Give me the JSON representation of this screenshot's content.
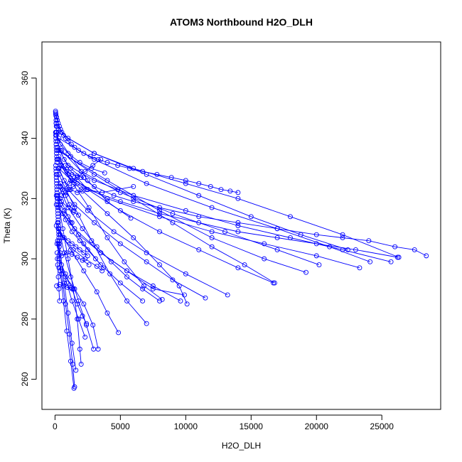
{
  "chart_data": {
    "type": "line",
    "title": "ATOM3 Northbound H2O_DLH",
    "xlabel": "H2O_DLH",
    "ylabel": "Theta (K)",
    "xlim": [
      -1000,
      29500
    ],
    "ylim": [
      250,
      372
    ],
    "xticks": [
      0,
      5000,
      10000,
      15000,
      20000,
      25000
    ],
    "yticks": [
      260,
      280,
      300,
      320,
      340,
      360
    ],
    "xtick_labels": [
      "0",
      "5000",
      "10000",
      "15000",
      "20000",
      "25000"
    ],
    "ytick_labels": [
      "260",
      "280",
      "300",
      "320",
      "340",
      "360"
    ],
    "grid": false,
    "legend": "none",
    "series_color": "#0000ff",
    "series": [
      {
        "x": [
          60,
          120,
          180,
          250,
          330,
          420,
          520,
          650,
          800,
          1000,
          1250,
          1500,
          1800,
          2200,
          2700,
          3300,
          4000,
          4800,
          5700,
          6700,
          7800,
          8900,
          10000,
          11000,
          11900,
          12700,
          13400,
          14000
        ],
        "y": [
          348,
          347,
          346,
          345,
          344,
          343,
          342,
          341,
          340,
          339,
          338,
          337,
          336,
          335,
          334,
          333,
          332,
          331,
          330,
          329,
          328,
          327,
          326,
          325,
          324,
          323,
          322.5,
          322
        ]
      },
      {
        "x": [
          28400,
          27500,
          26000,
          24000,
          22000,
          20000,
          17000,
          14000,
          11000,
          8000,
          6000,
          4500,
          3000,
          2000,
          1200,
          700,
          400,
          200,
          120,
          80
        ],
        "y": [
          301,
          303,
          304,
          306,
          307,
          308,
          310,
          312,
          314,
          317,
          319,
          321,
          324,
          327,
          330,
          333,
          336,
          339,
          342,
          345
        ]
      },
      {
        "x": [
          150,
          1000,
          3000,
          6000,
          10000,
          14000,
          18000,
          22000,
          26300
        ],
        "y": [
          344,
          340,
          335,
          330,
          325,
          320,
          314,
          308,
          300.5
        ]
      },
      {
        "x": [
          26200,
          23000,
          20000,
          17000,
          14000,
          11000,
          8000,
          5000,
          2500,
          1000,
          300
        ],
        "y": [
          300.5,
          303,
          305,
          307,
          309,
          312,
          315,
          319,
          323,
          328,
          334
        ]
      },
      {
        "x": [
          300,
          3000,
          7000,
          12000,
          17000,
          21000,
          24100
        ],
        "y": [
          340,
          333,
          325,
          317,
          310,
          304,
          299
        ]
      },
      {
        "x": [
          25700,
          22000,
          18000,
          14000,
          10000,
          6000,
          3000,
          1000,
          200
        ],
        "y": [
          299,
          303,
          307,
          311,
          316,
          321,
          326,
          331,
          337
        ]
      },
      {
        "x": [
          250,
          3000,
          7000,
          11000,
          15000,
          18800,
          22400
        ],
        "y": [
          342,
          335,
          328,
          321,
          314,
          308,
          303
        ]
      },
      {
        "x": [
          23300,
          20000,
          16000,
          12000,
          8000,
          4000,
          1500,
          300
        ],
        "y": [
          297,
          301,
          305,
          309,
          314,
          320,
          326,
          333
        ]
      },
      {
        "x": [
          200,
          4000,
          8000,
          12000,
          16000,
          19200
        ],
        "y": [
          336,
          326,
          316,
          307,
          300,
          295.5
        ]
      },
      {
        "x": [
          20200,
          17000,
          13000,
          9000,
          5000,
          2000,
          500
        ],
        "y": [
          298,
          303,
          309,
          315,
          322,
          329,
          336
        ]
      },
      {
        "x": [
          300,
          3000,
          6000,
          9000,
          12000,
          14500,
          16800
        ],
        "y": [
          336,
          328,
          320,
          312,
          304,
          298,
          292
        ]
      },
      {
        "x": [
          16700,
          14000,
          11000,
          8000,
          5000,
          2500,
          800
        ],
        "y": [
          292,
          297,
          303,
          309,
          316,
          323,
          331
        ]
      },
      {
        "x": [
          300,
          2000,
          4000,
          6000,
          8000,
          9500,
          10100
        ],
        "y": [
          330,
          323,
          315,
          307,
          298,
          291,
          285
        ]
      },
      {
        "x": [
          13200,
          10000,
          7000,
          4500,
          2500,
          1000,
          300
        ],
        "y": [
          288,
          295,
          302,
          309,
          316,
          323,
          330
        ]
      },
      {
        "x": [
          100,
          1500,
          3500,
          5500,
          7500,
          9900
        ],
        "y": [
          318,
          310,
          302,
          296,
          290,
          288
        ]
      },
      {
        "x": [
          11500,
          9000,
          7000,
          5000,
          3000,
          1500,
          400
        ],
        "y": [
          287,
          293,
          299,
          305,
          312,
          318,
          325
        ]
      },
      {
        "x": [
          300,
          1500,
          2800,
          4200,
          5500,
          7000
        ],
        "y": [
          328,
          317,
          306,
          295,
          286,
          278.5
        ]
      },
      {
        "x": [
          6700,
          5000,
          3500,
          2200,
          1200,
          400
        ],
        "y": [
          286,
          292,
          298,
          305,
          312,
          320
        ]
      },
      {
        "x": [
          250,
          1200,
          2200,
          3200,
          4000,
          4850
        ],
        "y": [
          310,
          303,
          296,
          289,
          282,
          275.5
        ]
      },
      {
        "x": [
          9600,
          7500,
          5500,
          3500,
          1800,
          600
        ],
        "y": [
          286,
          291,
          296,
          302,
          308,
          315
        ]
      },
      {
        "x": [
          300,
          800,
          1300,
          1700,
          2100,
          2400
        ],
        "y": [
          300,
          295,
          290,
          285,
          281,
          278.5
        ]
      },
      {
        "x": [
          2300,
          1800,
          1300,
          900,
          500,
          250
        ],
        "y": [
          274,
          280,
          286,
          292,
          298,
          305
        ]
      },
      {
        "x": [
          200,
          600,
          1000,
          1400,
          1700,
          1900,
          2000
        ],
        "y": [
          320,
          310,
          300,
          290,
          280,
          270,
          265
        ]
      },
      {
        "x": [
          1600,
          1300,
          1000,
          700,
          400,
          200
        ],
        "y": [
          263,
          272,
          282,
          292,
          302,
          312
        ]
      },
      {
        "x": [
          150,
          500,
          800,
          1100,
          1350,
          1500
        ],
        "y": [
          305,
          295,
          285,
          275,
          265,
          257.5
        ]
      },
      {
        "x": [
          1450,
          1200,
          900,
          650,
          400,
          200
        ],
        "y": [
          257,
          266,
          276,
          286,
          296,
          306
        ]
      },
      {
        "x": [
          300,
          800,
          1500,
          2200,
          2900,
          3300
        ],
        "y": [
          297,
          294,
          290,
          285,
          278,
          270
        ]
      },
      {
        "x": [
          2950,
          2400,
          1800,
          1200,
          700,
          300
        ],
        "y": [
          270,
          278,
          286,
          294,
          302,
          310
        ]
      },
      {
        "x": [
          100,
          600,
          1400,
          2300,
          3200,
          3600
        ],
        "y": [
          311,
          307,
          303,
          300,
          297.5,
          296
        ]
      },
      {
        "x": [
          3700,
          3100,
          2500,
          1900,
          1300,
          800,
          300
        ],
        "y": [
          297,
          300,
          303,
          306,
          309,
          313,
          317
        ]
      },
      {
        "x": [
          80,
          400,
          1000,
          1900,
          2800,
          3800
        ],
        "y": [
          342,
          338,
          335,
          332,
          330,
          328.5
        ]
      },
      {
        "x": [
          3500,
          2900,
          2300,
          1700,
          1100,
          600,
          200
        ],
        "y": [
          333,
          331,
          329,
          327,
          325,
          323,
          321
        ]
      },
      {
        "x": [
          200,
          1200,
          2600,
          4000,
          5300,
          6800,
          8200
        ],
        "y": [
          333,
          326,
          317,
          307,
          299,
          291,
          286.5
        ]
      },
      {
        "x": [
          8000,
          6700,
          5500,
          4300,
          3200,
          2100,
          1000,
          300
        ],
        "y": [
          286,
          290,
          294,
          299,
          304,
          310,
          317,
          324
        ]
      },
      {
        "x": [
          100,
          1200,
          2500,
          4000,
          5800
        ],
        "y": [
          341,
          334,
          326,
          319,
          313.5
        ]
      },
      {
        "x": [
          6000,
          4800,
          3600,
          2400,
          1300,
          400
        ],
        "y": [
          324,
          323,
          322,
          323,
          326,
          331
        ]
      },
      {
        "x": [
          250,
          700,
          1200,
          1700,
          2100
        ],
        "y": [
          330,
          326,
          323,
          322,
          322.5
        ]
      },
      {
        "x": [
          2200,
          1700,
          1300,
          900,
          500
        ],
        "y": [
          327,
          327.5,
          328,
          329,
          331
        ]
      },
      {
        "x": [
          100,
          500,
          1000,
          1400,
          1800
        ],
        "y": [
          321,
          319,
          317,
          315.5,
          314.5
        ]
      },
      {
        "x": [
          1700,
          1400,
          1100,
          800,
          500
        ],
        "y": [
          325,
          324,
          323,
          322,
          321
        ]
      },
      {
        "x": [
          150,
          450,
          800,
          1100,
          1400
        ],
        "y": [
          328,
          324,
          321,
          318,
          316
        ]
      },
      {
        "x": [
          1300,
          1000,
          700,
          400,
          200
        ],
        "y": [
          312,
          314,
          316,
          318,
          320
        ]
      },
      {
        "x": [
          180,
          500,
          900,
          1300,
          1700,
          2100,
          2600
        ],
        "y": [
          300,
          301,
          302,
          301.5,
          300.5,
          299.5,
          298
        ]
      },
      {
        "x": [
          2500,
          2200,
          1900,
          1600,
          1300,
          1000,
          700,
          400
        ],
        "y": [
          301,
          302,
          303,
          304,
          305,
          306,
          307,
          308
        ]
      },
      {
        "x": [
          120,
          350,
          650,
          950,
          1200
        ],
        "y": [
          291,
          291.5,
          291,
          290.5,
          290.5
        ]
      },
      {
        "x": [
          350,
          300,
          250,
          200,
          160
        ],
        "y": [
          286,
          290,
          294,
          298,
          302
        ]
      }
    ],
    "isolated_points": {
      "x": [
        40,
        50,
        60,
        70,
        80,
        90,
        100,
        45,
        55,
        65,
        75,
        85,
        95,
        105,
        115,
        125,
        135,
        145,
        60,
        70,
        80,
        90,
        100,
        110,
        120,
        130,
        140,
        150,
        160,
        170,
        180,
        190,
        200,
        210,
        220,
        230,
        240,
        250,
        260,
        270,
        280,
        290,
        300,
        310,
        320,
        330
      ],
      "y": [
        349,
        348.5,
        348,
        347.5,
        346,
        345,
        344,
        342,
        341,
        340,
        339,
        338,
        337,
        336,
        335,
        334,
        333,
        332,
        331,
        330,
        329,
        328,
        327,
        326,
        325,
        324,
        323,
        322,
        321,
        320,
        319,
        318,
        317,
        316,
        315,
        314,
        313,
        312,
        311,
        310,
        309,
        308,
        307,
        306,
        305,
        304
      ]
    }
  }
}
